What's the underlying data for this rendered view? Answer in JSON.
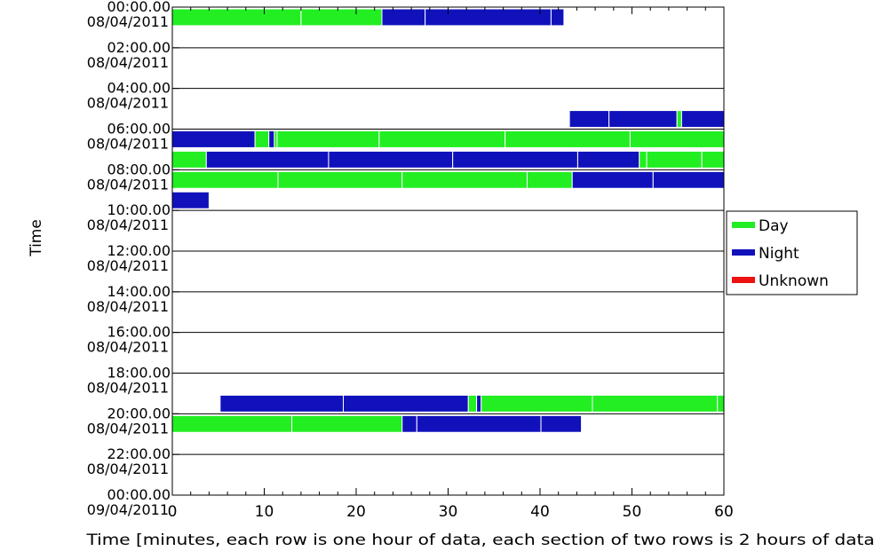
{
  "chart_data": {
    "type": "bar",
    "xlabel": "Time [minutes, each row is one hour of data, each section of two rows is 2 hours of data]",
    "ylabel": "Time",
    "xlim": [
      0,
      60
    ],
    "x_ticks": [
      "0",
      "10",
      "20",
      "30",
      "40",
      "50",
      "60"
    ],
    "x_tick_values": [
      0,
      10,
      20,
      30,
      40,
      50,
      60
    ],
    "y_tick_labels": [
      {
        "time": "00:00.00",
        "date": "08/04/2011"
      },
      {
        "time": "02:00.00",
        "date": "08/04/2011"
      },
      {
        "time": "04:00.00",
        "date": "08/04/2011"
      },
      {
        "time": "06:00.00",
        "date": "08/04/2011"
      },
      {
        "time": "08:00.00",
        "date": "08/04/2011"
      },
      {
        "time": "10:00.00",
        "date": "08/04/2011"
      },
      {
        "time": "12:00.00",
        "date": "08/04/2011"
      },
      {
        "time": "14:00.00",
        "date": "08/04/2011"
      },
      {
        "time": "16:00.00",
        "date": "08/04/2011"
      },
      {
        "time": "18:00.00",
        "date": "08/04/2011"
      },
      {
        "time": "20:00.00",
        "date": "08/04/2011"
      },
      {
        "time": "22:00.00",
        "date": "08/04/2011"
      },
      {
        "time": "00:00.00",
        "date": "09/04/2011"
      }
    ],
    "legend": {
      "position": "right",
      "entries": [
        {
          "label": "Day",
          "color": "#22ee22"
        },
        {
          "label": "Night",
          "color": "#1111bb"
        },
        {
          "label": "Unknown",
          "color": "#ee1111"
        }
      ]
    },
    "row_count": 24,
    "segment_boundary_color": "#ffffff",
    "rows": [
      {
        "hour": 0,
        "segments": [
          [
            0,
            14,
            "Day"
          ],
          [
            14,
            22.8,
            "Day"
          ],
          [
            22.8,
            27.5,
            "Night"
          ],
          [
            27.5,
            41.2,
            "Night"
          ],
          [
            41.2,
            42.6,
            "Night"
          ]
        ]
      },
      {
        "hour": 1,
        "segments": []
      },
      {
        "hour": 2,
        "segments": []
      },
      {
        "hour": 3,
        "segments": []
      },
      {
        "hour": 4,
        "segments": []
      },
      {
        "hour": 5,
        "segments": [
          [
            43.2,
            47.5,
            "Night"
          ],
          [
            47.5,
            54.9,
            "Night"
          ],
          [
            54.9,
            55.4,
            "Day"
          ],
          [
            55.4,
            60,
            "Night"
          ]
        ]
      },
      {
        "hour": 6,
        "segments": [
          [
            0,
            9,
            "Night"
          ],
          [
            9,
            10.5,
            "Day"
          ],
          [
            10.5,
            11.1,
            "Night"
          ],
          [
            11.1,
            11.4,
            "Day"
          ],
          [
            11.4,
            22.5,
            "Day"
          ],
          [
            22.5,
            36.2,
            "Day"
          ],
          [
            36.2,
            49.8,
            "Day"
          ],
          [
            49.8,
            60,
            "Day"
          ]
        ]
      },
      {
        "hour": 7,
        "segments": [
          [
            0,
            3.7,
            "Day"
          ],
          [
            3.7,
            17,
            "Night"
          ],
          [
            17,
            30.5,
            "Night"
          ],
          [
            30.5,
            44.1,
            "Night"
          ],
          [
            44.1,
            50.8,
            "Night"
          ],
          [
            50.8,
            51.6,
            "Day"
          ],
          [
            51.6,
            57.6,
            "Day"
          ],
          [
            57.6,
            60,
            "Day"
          ]
        ]
      },
      {
        "hour": 8,
        "segments": [
          [
            0,
            11.5,
            "Day"
          ],
          [
            11.5,
            25,
            "Day"
          ],
          [
            25,
            38.6,
            "Day"
          ],
          [
            38.6,
            43.5,
            "Day"
          ],
          [
            43.5,
            52.3,
            "Night"
          ],
          [
            52.3,
            60,
            "Night"
          ]
        ]
      },
      {
        "hour": 9,
        "segments": [
          [
            0,
            4,
            "Night"
          ]
        ]
      },
      {
        "hour": 10,
        "segments": []
      },
      {
        "hour": 11,
        "segments": []
      },
      {
        "hour": 12,
        "segments": []
      },
      {
        "hour": 13,
        "segments": []
      },
      {
        "hour": 14,
        "segments": []
      },
      {
        "hour": 15,
        "segments": []
      },
      {
        "hour": 16,
        "segments": []
      },
      {
        "hour": 17,
        "segments": []
      },
      {
        "hour": 18,
        "segments": []
      },
      {
        "hour": 19,
        "segments": [
          [
            5.2,
            18.6,
            "Night"
          ],
          [
            18.6,
            32.2,
            "Night"
          ],
          [
            32.2,
            33.1,
            "Day"
          ],
          [
            33.1,
            33.6,
            "Night"
          ],
          [
            33.6,
            45.7,
            "Day"
          ],
          [
            45.7,
            59.3,
            "Day"
          ],
          [
            59.3,
            60,
            "Day"
          ]
        ]
      },
      {
        "hour": 20,
        "segments": [
          [
            0,
            13,
            "Day"
          ],
          [
            13,
            25,
            "Day"
          ],
          [
            25,
            26.6,
            "Night"
          ],
          [
            26.6,
            40.1,
            "Night"
          ],
          [
            40.1,
            44.5,
            "Night"
          ]
        ]
      },
      {
        "hour": 21,
        "segments": []
      },
      {
        "hour": 22,
        "segments": []
      },
      {
        "hour": 23,
        "segments": []
      }
    ]
  }
}
